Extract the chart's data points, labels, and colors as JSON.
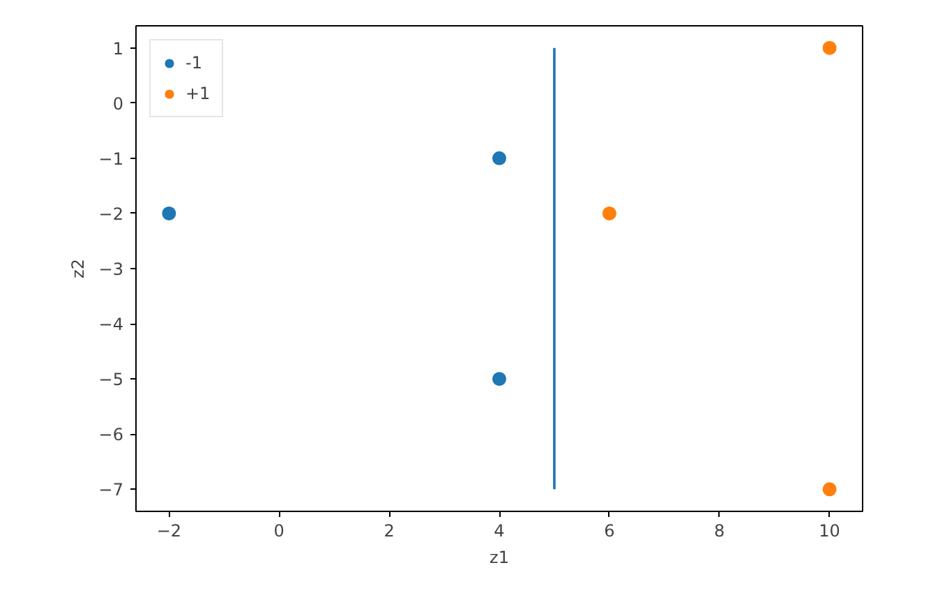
{
  "chart_data": {
    "type": "scatter",
    "xlabel": "z1",
    "ylabel": "z2",
    "xlim": [
      -2.6,
      10.6
    ],
    "ylim": [
      -7.4,
      1.4
    ],
    "xticks": [
      -2,
      0,
      2,
      4,
      6,
      8,
      10
    ],
    "yticks": [
      -7,
      -6,
      -5,
      -4,
      -3,
      -2,
      -1,
      0,
      1
    ],
    "grid": false,
    "legend": "top left",
    "marker": "circle",
    "series": [
      {
        "name": "-1",
        "color": "#1f77b4",
        "x": [
          -2,
          4,
          4
        ],
        "values": [
          -2,
          -1,
          -5
        ]
      },
      {
        "name": "+1",
        "color": "#ff7f0e",
        "x": [
          6,
          10,
          10
        ],
        "values": [
          -2,
          1,
          -7
        ]
      },
      {
        "color": "#1f77b4",
        "type": "line",
        "marker": "none",
        "x": [
          5,
          5
        ],
        "values": [
          -7,
          1
        ]
      }
    ]
  }
}
